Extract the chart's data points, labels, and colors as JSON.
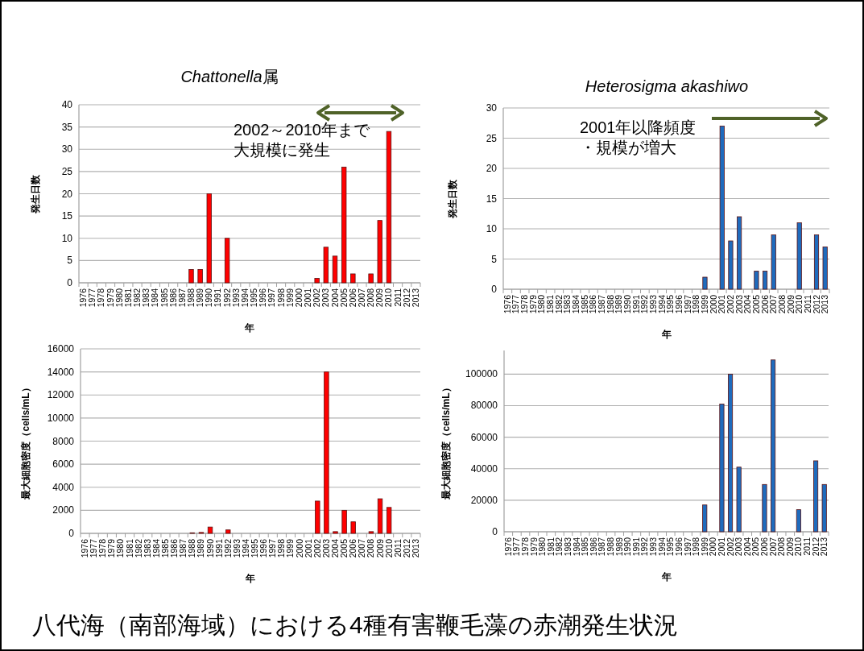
{
  "chart_data": [
    {
      "type": "bar",
      "title": "Chattonella属",
      "xlabel": "年",
      "ylabel": "発生日数",
      "color": "#ff0000",
      "ylim": [
        0,
        40
      ],
      "yticks": [
        0,
        5,
        10,
        15,
        20,
        25,
        30,
        35,
        40
      ],
      "grid": "y",
      "categories": [
        "1976",
        "1977",
        "1978",
        "1979",
        "1980",
        "1981",
        "1982",
        "1983",
        "1984",
        "1985",
        "1986",
        "1987",
        "1988",
        "1989",
        "1990",
        "1991",
        "1992",
        "1993",
        "1994",
        "1995",
        "1996",
        "1997",
        "1998",
        "1999",
        "2000",
        "2001",
        "2002",
        "2003",
        "2004",
        "2005",
        "2006",
        "2007",
        "2008",
        "2009",
        "2010",
        "2011",
        "2012",
        "2013"
      ],
      "values": [
        null,
        null,
        null,
        null,
        null,
        null,
        null,
        null,
        null,
        null,
        null,
        null,
        3,
        3,
        20,
        null,
        10,
        null,
        null,
        null,
        null,
        null,
        null,
        null,
        null,
        null,
        1,
        8,
        6,
        26,
        2,
        null,
        2,
        14,
        34,
        null,
        null,
        null
      ],
      "annotations": [
        "2002～2010年まで大規模に発生"
      ]
    },
    {
      "type": "bar",
      "title": "Heterosigma akashiwo",
      "xlabel": "年",
      "ylabel": "発生日数",
      "color": "#1f6bbd",
      "ylim": [
        0,
        30
      ],
      "yticks": [
        0,
        5,
        10,
        15,
        20,
        25,
        30
      ],
      "grid": "y",
      "categories": [
        "1976",
        "1977",
        "1978",
        "1979",
        "1980",
        "1981",
        "1982",
        "1983",
        "1984",
        "1985",
        "1986",
        "1987",
        "1988",
        "1989",
        "1990",
        "1991",
        "1992",
        "1993",
        "1994",
        "1995",
        "1996",
        "1997",
        "1998",
        "1999",
        "2000",
        "2001",
        "2002",
        "2003",
        "2004",
        "2005",
        "2006",
        "2007",
        "2008",
        "2009",
        "2010",
        "2011",
        "2012",
        "2013"
      ],
      "values": [
        null,
        null,
        null,
        null,
        null,
        null,
        null,
        null,
        null,
        null,
        null,
        null,
        null,
        null,
        null,
        null,
        null,
        null,
        null,
        null,
        null,
        null,
        null,
        2,
        null,
        27,
        8,
        12,
        null,
        3,
        3,
        9,
        null,
        null,
        11,
        null,
        9,
        7
      ],
      "annotations": [
        "2001年以降頻度・規模が増大"
      ]
    },
    {
      "type": "bar",
      "xlabel": "年",
      "ylabel": "最大細胞密度（cells/mL）",
      "color": "#ff0000",
      "ylim": [
        0,
        16000
      ],
      "yticks": [
        0,
        2000,
        4000,
        6000,
        8000,
        10000,
        12000,
        14000,
        16000
      ],
      "grid": "y",
      "categories": [
        "1976",
        "1977",
        "1978",
        "1979",
        "1980",
        "1981",
        "1982",
        "1983",
        "1984",
        "1985",
        "1986",
        "1987",
        "1988",
        "1989",
        "1990",
        "1991",
        "1992",
        "1993",
        "1994",
        "1995",
        "1996",
        "1997",
        "1998",
        "1999",
        "2000",
        "2001",
        "2002",
        "2003",
        "2004",
        "2005",
        "2006",
        "2007",
        "2008",
        "2009",
        "2010",
        "2011",
        "2012",
        "2013"
      ],
      "values": [
        null,
        null,
        null,
        null,
        null,
        null,
        null,
        null,
        null,
        null,
        null,
        null,
        50,
        80,
        550,
        null,
        300,
        null,
        null,
        null,
        null,
        null,
        null,
        null,
        null,
        null,
        2800,
        14000,
        150,
        2000,
        1000,
        null,
        150,
        3000,
        2250,
        null,
        null,
        null
      ]
    },
    {
      "type": "bar",
      "xlabel": "年",
      "ylabel": "最大細胞密度（cells/mL）",
      "color": "#1f6bbd",
      "ylim": [
        0,
        115000
      ],
      "yticks": [
        0,
        20000,
        40000,
        60000,
        80000,
        100000
      ],
      "grid": "y",
      "categories": [
        "1976",
        "1977",
        "1978",
        "1979",
        "1980",
        "1981",
        "1982",
        "1983",
        "1984",
        "1985",
        "1986",
        "1987",
        "1988",
        "1989",
        "1990",
        "1991",
        "1992",
        "1993",
        "1994",
        "1995",
        "1996",
        "1997",
        "1998",
        "1999",
        "2000",
        "2001",
        "2002",
        "2003",
        "2004",
        "2005",
        "2006",
        "2007",
        "2008",
        "2009",
        "2010",
        "2011",
        "2012",
        "2013"
      ],
      "values": [
        null,
        null,
        null,
        null,
        null,
        null,
        null,
        null,
        null,
        null,
        null,
        null,
        null,
        null,
        null,
        null,
        null,
        null,
        null,
        null,
        null,
        null,
        null,
        17000,
        null,
        81000,
        100000,
        41000,
        null,
        null,
        30000,
        109000,
        null,
        null,
        14000,
        null,
        45000,
        30000
      ],
      "annotations": [
        "八代海（南部海域）における4種有害鞭毛藻の赤潮発生状況"
      ]
    }
  ]
}
